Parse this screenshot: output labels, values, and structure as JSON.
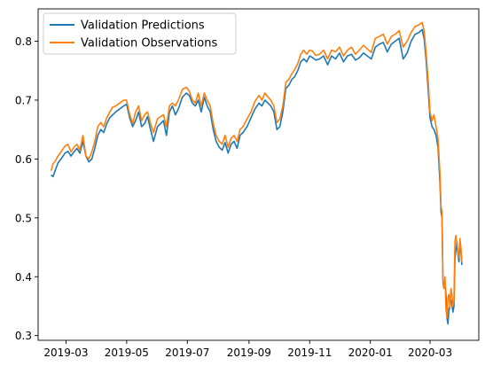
{
  "chart_data": {
    "type": "line",
    "title": "",
    "xlabel": "",
    "ylabel": "",
    "xlim": [
      "2019-02-01",
      "2020-04-19"
    ],
    "ylim": [
      0.292,
      0.855
    ],
    "x_ticks": [
      "2019-03-01",
      "2019-05-01",
      "2019-07-01",
      "2019-09-01",
      "2019-11-01",
      "2020-01-01",
      "2020-03-01"
    ],
    "x_tick_labels": [
      "2019-03",
      "2019-05",
      "2019-07",
      "2019-09",
      "2019-11",
      "2020-01",
      "2020-03"
    ],
    "y_ticks": [
      0.3,
      0.4,
      0.5,
      0.6,
      0.7,
      0.8
    ],
    "y_tick_labels": [
      "0.3",
      "0.4",
      "0.5",
      "0.6",
      "0.7",
      "0.8"
    ],
    "legend_position": "top-left",
    "grid": false,
    "series": [
      {
        "name": "Validation Predictions",
        "color": "#1f77b4",
        "x": [
          "2019-02-14",
          "2019-02-16",
          "2019-02-18",
          "2019-02-21",
          "2019-02-24",
          "2019-02-28",
          "2019-03-03",
          "2019-03-06",
          "2019-03-09",
          "2019-03-12",
          "2019-03-15",
          "2019-03-18",
          "2019-03-21",
          "2019-03-24",
          "2019-03-27",
          "2019-03-30",
          "2019-04-02",
          "2019-04-05",
          "2019-04-08",
          "2019-04-11",
          "2019-04-14",
          "2019-04-17",
          "2019-04-20",
          "2019-04-24",
          "2019-04-28",
          "2019-05-01",
          "2019-05-04",
          "2019-05-07",
          "2019-05-10",
          "2019-05-13",
          "2019-05-16",
          "2019-05-19",
          "2019-05-22",
          "2019-05-25",
          "2019-05-28",
          "2019-06-01",
          "2019-06-04",
          "2019-06-07",
          "2019-06-10",
          "2019-06-13",
          "2019-06-16",
          "2019-06-19",
          "2019-06-22",
          "2019-06-26",
          "2019-06-30",
          "2019-07-03",
          "2019-07-06",
          "2019-07-09",
          "2019-07-12",
          "2019-07-15",
          "2019-07-18",
          "2019-07-21",
          "2019-07-24",
          "2019-07-27",
          "2019-07-30",
          "2019-08-02",
          "2019-08-05",
          "2019-08-08",
          "2019-08-11",
          "2019-08-14",
          "2019-08-17",
          "2019-08-20",
          "2019-08-23",
          "2019-08-26",
          "2019-08-30",
          "2019-09-03",
          "2019-09-07",
          "2019-09-11",
          "2019-09-14",
          "2019-09-17",
          "2019-09-20",
          "2019-09-23",
          "2019-09-26",
          "2019-09-29",
          "2019-10-02",
          "2019-10-05",
          "2019-10-08",
          "2019-10-11",
          "2019-10-14",
          "2019-10-17",
          "2019-10-20",
          "2019-10-23",
          "2019-10-26",
          "2019-10-29",
          "2019-11-01",
          "2019-11-04",
          "2019-11-07",
          "2019-11-11",
          "2019-11-15",
          "2019-11-19",
          "2019-11-23",
          "2019-11-27",
          "2019-12-01",
          "2019-12-05",
          "2019-12-09",
          "2019-12-13",
          "2019-12-17",
          "2019-12-21",
          "2019-12-25",
          "2019-12-29",
          "2020-01-02",
          "2020-01-06",
          "2020-01-10",
          "2020-01-14",
          "2020-01-18",
          "2020-01-22",
          "2020-01-26",
          "2020-01-30",
          "2020-02-03",
          "2020-02-07",
          "2020-02-11",
          "2020-02-15",
          "2020-02-19",
          "2020-02-22",
          "2020-02-24",
          "2020-02-26",
          "2020-02-28",
          "2020-03-01",
          "2020-03-03",
          "2020-03-05",
          "2020-03-07",
          "2020-03-09",
          "2020-03-11",
          "2020-03-12",
          "2020-03-13",
          "2020-03-14",
          "2020-03-15",
          "2020-03-16",
          "2020-03-17",
          "2020-03-18",
          "2020-03-19",
          "2020-03-20",
          "2020-03-21",
          "2020-03-22",
          "2020-03-23",
          "2020-03-24",
          "2020-03-25",
          "2020-03-26",
          "2020-03-27",
          "2020-03-28",
          "2020-03-29",
          "2020-03-30",
          "2020-03-31",
          "2020-04-01",
          "2020-04-02"
        ],
        "y": [
          0.573,
          0.57,
          0.58,
          0.593,
          0.6,
          0.61,
          0.613,
          0.605,
          0.612,
          0.618,
          0.61,
          0.63,
          0.605,
          0.595,
          0.6,
          0.618,
          0.64,
          0.65,
          0.645,
          0.66,
          0.67,
          0.675,
          0.68,
          0.685,
          0.69,
          0.693,
          0.67,
          0.655,
          0.665,
          0.68,
          0.655,
          0.66,
          0.672,
          0.65,
          0.63,
          0.655,
          0.66,
          0.665,
          0.64,
          0.68,
          0.69,
          0.675,
          0.685,
          0.705,
          0.712,
          0.708,
          0.695,
          0.69,
          0.7,
          0.68,
          0.705,
          0.69,
          0.68,
          0.65,
          0.63,
          0.62,
          0.615,
          0.628,
          0.61,
          0.625,
          0.63,
          0.618,
          0.64,
          0.645,
          0.655,
          0.67,
          0.685,
          0.695,
          0.69,
          0.7,
          0.695,
          0.69,
          0.68,
          0.65,
          0.655,
          0.68,
          0.72,
          0.725,
          0.735,
          0.74,
          0.75,
          0.765,
          0.77,
          0.765,
          0.775,
          0.772,
          0.768,
          0.77,
          0.775,
          0.76,
          0.775,
          0.77,
          0.78,
          0.765,
          0.775,
          0.778,
          0.768,
          0.772,
          0.78,
          0.775,
          0.77,
          0.79,
          0.795,
          0.798,
          0.782,
          0.795,
          0.8,
          0.805,
          0.77,
          0.78,
          0.8,
          0.812,
          0.815,
          0.82,
          0.805,
          0.77,
          0.72,
          0.67,
          0.655,
          0.65,
          0.64,
          0.62,
          0.56,
          0.51,
          0.5,
          0.39,
          0.38,
          0.39,
          0.37,
          0.33,
          0.32,
          0.345,
          0.35,
          0.36,
          0.355,
          0.34,
          0.35,
          0.43,
          0.445,
          0.46,
          0.44,
          0.425,
          0.455,
          0.445,
          0.42
        ],
        "x_labels": []
      },
      {
        "name": "Validation Observations",
        "color": "#ff7f0e",
        "x": [
          "2019-02-14",
          "2019-02-16",
          "2019-02-18",
          "2019-02-21",
          "2019-02-24",
          "2019-02-28",
          "2019-03-03",
          "2019-03-06",
          "2019-03-09",
          "2019-03-12",
          "2019-03-15",
          "2019-03-18",
          "2019-03-21",
          "2019-03-24",
          "2019-03-27",
          "2019-03-30",
          "2019-04-02",
          "2019-04-05",
          "2019-04-08",
          "2019-04-11",
          "2019-04-14",
          "2019-04-17",
          "2019-04-20",
          "2019-04-24",
          "2019-04-28",
          "2019-05-01",
          "2019-05-04",
          "2019-05-07",
          "2019-05-10",
          "2019-05-13",
          "2019-05-16",
          "2019-05-19",
          "2019-05-22",
          "2019-05-25",
          "2019-05-28",
          "2019-06-01",
          "2019-06-04",
          "2019-06-07",
          "2019-06-10",
          "2019-06-13",
          "2019-06-16",
          "2019-06-19",
          "2019-06-22",
          "2019-06-26",
          "2019-06-30",
          "2019-07-03",
          "2019-07-06",
          "2019-07-09",
          "2019-07-12",
          "2019-07-15",
          "2019-07-18",
          "2019-07-21",
          "2019-07-24",
          "2019-07-27",
          "2019-07-30",
          "2019-08-02",
          "2019-08-05",
          "2019-08-08",
          "2019-08-11",
          "2019-08-14",
          "2019-08-17",
          "2019-08-20",
          "2019-08-23",
          "2019-08-26",
          "2019-08-30",
          "2019-09-03",
          "2019-09-07",
          "2019-09-11",
          "2019-09-14",
          "2019-09-17",
          "2019-09-20",
          "2019-09-23",
          "2019-09-26",
          "2019-09-29",
          "2019-10-02",
          "2019-10-05",
          "2019-10-08",
          "2019-10-11",
          "2019-10-14",
          "2019-10-17",
          "2019-10-20",
          "2019-10-23",
          "2019-10-26",
          "2019-10-29",
          "2019-11-01",
          "2019-11-04",
          "2019-11-07",
          "2019-11-11",
          "2019-11-15",
          "2019-11-19",
          "2019-11-23",
          "2019-11-27",
          "2019-12-01",
          "2019-12-05",
          "2019-12-09",
          "2019-12-13",
          "2019-12-17",
          "2019-12-21",
          "2019-12-25",
          "2019-12-29",
          "2020-01-02",
          "2020-01-06",
          "2020-01-10",
          "2020-01-14",
          "2020-01-18",
          "2020-01-22",
          "2020-01-26",
          "2020-01-30",
          "2020-02-03",
          "2020-02-07",
          "2020-02-11",
          "2020-02-15",
          "2020-02-19",
          "2020-02-22",
          "2020-02-24",
          "2020-02-26",
          "2020-02-28",
          "2020-03-01",
          "2020-03-03",
          "2020-03-05",
          "2020-03-07",
          "2020-03-09",
          "2020-03-11",
          "2020-03-12",
          "2020-03-13",
          "2020-03-14",
          "2020-03-15",
          "2020-03-16",
          "2020-03-17",
          "2020-03-18",
          "2020-03-19",
          "2020-03-20",
          "2020-03-21",
          "2020-03-22",
          "2020-03-23",
          "2020-03-24",
          "2020-03-25",
          "2020-03-26",
          "2020-03-27",
          "2020-03-28",
          "2020-03-29",
          "2020-03-30",
          "2020-03-31",
          "2020-04-01",
          "2020-04-02"
        ],
        "y": [
          0.58,
          0.592,
          0.596,
          0.605,
          0.612,
          0.622,
          0.625,
          0.612,
          0.62,
          0.625,
          0.615,
          0.64,
          0.605,
          0.6,
          0.612,
          0.63,
          0.655,
          0.662,
          0.655,
          0.67,
          0.68,
          0.688,
          0.69,
          0.695,
          0.7,
          0.7,
          0.676,
          0.66,
          0.68,
          0.69,
          0.665,
          0.675,
          0.68,
          0.66,
          0.645,
          0.668,
          0.672,
          0.675,
          0.655,
          0.69,
          0.695,
          0.69,
          0.7,
          0.718,
          0.722,
          0.715,
          0.7,
          0.695,
          0.712,
          0.69,
          0.712,
          0.7,
          0.69,
          0.66,
          0.64,
          0.63,
          0.625,
          0.64,
          0.62,
          0.635,
          0.64,
          0.63,
          0.65,
          0.655,
          0.668,
          0.68,
          0.698,
          0.708,
          0.7,
          0.712,
          0.705,
          0.7,
          0.69,
          0.662,
          0.668,
          0.69,
          0.73,
          0.735,
          0.745,
          0.752,
          0.762,
          0.778,
          0.785,
          0.778,
          0.785,
          0.783,
          0.776,
          0.778,
          0.785,
          0.77,
          0.785,
          0.782,
          0.79,
          0.775,
          0.785,
          0.79,
          0.778,
          0.785,
          0.793,
          0.787,
          0.781,
          0.805,
          0.808,
          0.812,
          0.795,
          0.808,
          0.812,
          0.818,
          0.79,
          0.8,
          0.815,
          0.825,
          0.828,
          0.832,
          0.818,
          0.782,
          0.735,
          0.68,
          0.665,
          0.675,
          0.655,
          0.635,
          0.575,
          0.52,
          0.51,
          0.395,
          0.38,
          0.4,
          0.345,
          0.33,
          0.365,
          0.37,
          0.345,
          0.38,
          0.37,
          0.35,
          0.36,
          0.46,
          0.47,
          0.455,
          0.445,
          0.432,
          0.465,
          0.45,
          0.425
        ],
        "x_labels": []
      }
    ]
  }
}
